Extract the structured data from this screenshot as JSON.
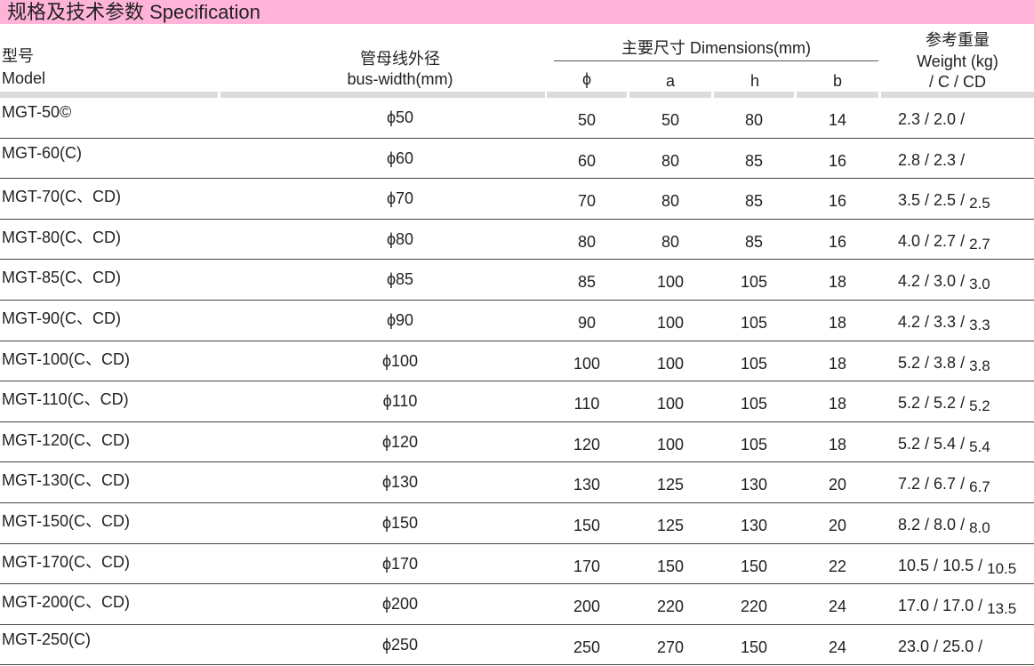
{
  "title": "规格及技术参数  Specification",
  "headers": {
    "model_cn": "型号",
    "model_en": "Model",
    "bus_cn": "管母线外径",
    "bus_en": "bus-width(mm)",
    "dims": "主要尺寸  Dimensions(mm)",
    "phi": "ϕ",
    "a": "a",
    "h": "h",
    "b": "b",
    "weight_cn": "参考重量",
    "weight_en": "Weight (kg)",
    "weight_sub": "/ C / CD"
  },
  "rows": [
    {
      "model": "MGT-50©",
      "bus": "ϕ50",
      "phi": "50",
      "a": "50",
      "h": "80",
      "b": "14",
      "w1": "2.3",
      "w2": "2.0",
      "w3": ""
    },
    {
      "model": "MGT-60(C)",
      "bus": "ϕ60",
      "phi": "60",
      "a": "80",
      "h": "85",
      "b": "16",
      "w1": "2.8",
      "w2": "2.3",
      "w3": ""
    },
    {
      "model": "MGT-70(C、CD)",
      "bus": "ϕ70",
      "phi": "70",
      "a": "80",
      "h": "85",
      "b": "16",
      "w1": "3.5",
      "w2": "2.5",
      "w3": "2.5"
    },
    {
      "model": "MGT-80(C、CD)",
      "bus": "ϕ80",
      "phi": "80",
      "a": "80",
      "h": "85",
      "b": "16",
      "w1": "4.0",
      "w2": "2.7",
      "w3": "2.7"
    },
    {
      "model": "MGT-85(C、CD)",
      "bus": "ϕ85",
      "phi": "85",
      "a": "100",
      "h": "105",
      "b": "18",
      "w1": "4.2",
      "w2": "3.0",
      "w3": "3.0"
    },
    {
      "model": "MGT-90(C、CD)",
      "bus": "ϕ90",
      "phi": "90",
      "a": "100",
      "h": "105",
      "b": "18",
      "w1": "4.2",
      "w2": "3.3",
      "w3": "3.3"
    },
    {
      "model": "MGT-100(C、CD)",
      "bus": "ϕ100",
      "phi": "100",
      "a": "100",
      "h": "105",
      "b": "18",
      "w1": "5.2",
      "w2": "3.8",
      "w3": "3.8"
    },
    {
      "model": "MGT-110(C、CD)",
      "bus": "ϕ110",
      "phi": "110",
      "a": "100",
      "h": "105",
      "b": "18",
      "w1": "5.2",
      "w2": "5.2",
      "w3": "5.2"
    },
    {
      "model": "MGT-120(C、CD)",
      "bus": "ϕ120",
      "phi": "120",
      "a": "100",
      "h": "105",
      "b": "18",
      "w1": "5.2",
      "w2": "5.4",
      "w3": "5.4"
    },
    {
      "model": "MGT-130(C、CD)",
      "bus": "ϕ130",
      "phi": "130",
      "a": "125",
      "h": "130",
      "b": "20",
      "w1": "7.2",
      "w2": "6.7",
      "w3": "6.7"
    },
    {
      "model": "MGT-150(C、CD)",
      "bus": "ϕ150",
      "phi": "150",
      "a": "125",
      "h": "130",
      "b": "20",
      "w1": "8.2",
      "w2": "8.0",
      "w3": "8.0"
    },
    {
      "model": "MGT-170(C、CD)",
      "bus": "ϕ170",
      "phi": "170",
      "a": "150",
      "h": "150",
      "b": "22",
      "w1": "10.5",
      "w2": "10.5",
      "w3": "10.5"
    },
    {
      "model": "MGT-200(C、CD)",
      "bus": "ϕ200",
      "phi": "200",
      "a": "220",
      "h": "220",
      "b": "24",
      "w1": "17.0",
      "w2": "17.0",
      "w3": "13.5"
    },
    {
      "model": "MGT-250(C)",
      "bus": "ϕ250",
      "phi": "250",
      "a": "270",
      "h": "150",
      "b": "24",
      "w1": "23.0",
      "w2": "25.0",
      "w3": ""
    }
  ],
  "colors": {
    "title_bg": "#ffb3d9",
    "header_bar": "#dcdcdc"
  }
}
